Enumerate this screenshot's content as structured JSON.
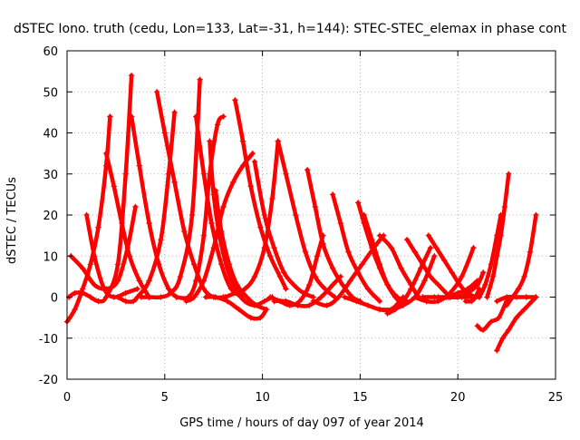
{
  "chart_data": {
    "type": "line",
    "title": "dSTEC Iono. truth (cedu, Lon=133, Lat=-31, h=144): STEC-STEC_elemax in phase cont",
    "xlabel": "GPS time / hours of day 097 of year 2014",
    "ylabel": "dSTEC  / TECUs",
    "xlim": [
      0,
      25
    ],
    "ylim": [
      -20,
      60
    ],
    "xticks": [
      0,
      5,
      10,
      15,
      20,
      25
    ],
    "yticks": [
      -20,
      -10,
      0,
      10,
      20,
      30,
      40,
      50,
      60
    ],
    "grid": true,
    "legend": "none",
    "color": "#ff0000",
    "marker": "plus",
    "series": [
      {
        "x": [
          0.0,
          0.4,
          0.8,
          1.2,
          1.6,
          2.0,
          2.2
        ],
        "y": [
          -6,
          -3,
          2,
          8,
          17,
          32,
          44
        ]
      },
      {
        "x": [
          2.0,
          2.4,
          2.8,
          3.2,
          3.7,
          4.2
        ],
        "y": [
          35,
          27,
          18,
          10,
          4,
          0
        ]
      },
      {
        "x": [
          0.1,
          0.4,
          0.8,
          1.2,
          1.6,
          2.0,
          2.6,
          3.0,
          3.3
        ],
        "y": [
          0,
          1,
          1,
          0,
          -1,
          0,
          8,
          30,
          54
        ]
      },
      {
        "x": [
          3.3,
          3.7,
          4.2,
          4.7,
          5.2,
          5.6
        ],
        "y": [
          44,
          32,
          18,
          8,
          2,
          0
        ]
      },
      {
        "x": [
          1.0,
          1.4,
          1.9,
          2.4,
          3.0,
          3.6
        ],
        "y": [
          20,
          10,
          2,
          0,
          1,
          2
        ]
      },
      {
        "x": [
          2.6,
          3.0,
          3.4,
          3.6,
          4.2,
          4.8,
          5.2,
          5.5
        ],
        "y": [
          0,
          -1,
          -1,
          0,
          4,
          14,
          30,
          45
        ]
      },
      {
        "x": [
          4.6,
          5.0,
          5.5,
          6.0,
          6.5,
          7.0,
          7.5,
          8.0
        ],
        "y": [
          50,
          40,
          28,
          16,
          8,
          2,
          0,
          0
        ]
      },
      {
        "x": [
          3.8,
          4.2,
          4.8,
          5.3,
          5.8,
          6.4,
          6.8
        ],
        "y": [
          0,
          0,
          0,
          1,
          5,
          20,
          53
        ]
      },
      {
        "x": [
          6.6,
          7.0,
          7.4,
          7.9,
          8.4,
          9.0
        ],
        "y": [
          44,
          30,
          18,
          8,
          2,
          0
        ]
      },
      {
        "x": [
          6.1,
          6.5,
          7.0,
          7.5,
          8.0,
          8.5,
          9.0,
          9.5
        ],
        "y": [
          -1,
          0,
          4,
          12,
          22,
          28,
          32,
          35
        ]
      },
      {
        "x": [
          0.2,
          0.8,
          1.4,
          2.0,
          2.6,
          3.1,
          3.5
        ],
        "y": [
          10,
          7,
          3,
          2,
          4,
          12,
          22
        ]
      },
      {
        "x": [
          5.6,
          6.2,
          6.6,
          7.0,
          7.3,
          7.7,
          8.0
        ],
        "y": [
          0,
          0,
          4,
          15,
          30,
          42,
          44
        ]
      },
      {
        "x": [
          7.3,
          7.5,
          7.8,
          8.2,
          8.6,
          9.1,
          9.6,
          10.1,
          10.5
        ],
        "y": [
          38,
          25,
          15,
          7,
          2,
          -1,
          -2,
          -1,
          0
        ]
      },
      {
        "x": [
          7.6,
          7.9,
          8.3,
          8.7,
          9.2,
          9.7,
          10.2
        ],
        "y": [
          26,
          16,
          8,
          3,
          0,
          -2,
          -3
        ]
      },
      {
        "x": [
          8.6,
          9.0,
          9.4,
          9.9,
          10.4,
          10.9,
          11.2
        ],
        "y": [
          48,
          38,
          27,
          17,
          10,
          5,
          2
        ]
      },
      {
        "x": [
          7.1,
          7.6,
          8.2,
          8.8,
          9.4,
          9.9,
          10.2
        ],
        "y": [
          0,
          0,
          -1,
          -3,
          -5,
          -5,
          -3
        ]
      },
      {
        "x": [
          8.1,
          8.6,
          9.1,
          9.6,
          10.1,
          10.5,
          10.8
        ],
        "y": [
          0,
          1,
          2,
          5,
          12,
          24,
          38
        ]
      },
      {
        "x": [
          9.6,
          10.1,
          10.6,
          11.1,
          11.6,
          12.1,
          12.6
        ],
        "y": [
          33,
          20,
          12,
          6,
          3,
          1,
          0
        ]
      },
      {
        "x": [
          10.8,
          11.2,
          11.7,
          12.2,
          12.7,
          13.2,
          13.7
        ],
        "y": [
          38,
          30,
          20,
          11,
          5,
          2,
          0
        ]
      },
      {
        "x": [
          10.4,
          10.9,
          11.4,
          11.9,
          12.4,
          12.8,
          13.1
        ],
        "y": [
          0,
          -1,
          -2,
          -1,
          3,
          10,
          15
        ]
      },
      {
        "x": [
          12.3,
          12.7,
          13.1,
          13.6,
          14.1,
          14.6,
          15.0
        ],
        "y": [
          31,
          22,
          13,
          7,
          3,
          0,
          -1
        ]
      },
      {
        "x": [
          10.6,
          11.2,
          11.8,
          12.4,
          13.0,
          13.6,
          14.0
        ],
        "y": [
          -1,
          -1,
          -2,
          -2,
          0,
          3,
          5
        ]
      },
      {
        "x": [
          13.6,
          14.0,
          14.4,
          14.9,
          15.4,
          16.0
        ],
        "y": [
          25,
          18,
          11,
          6,
          2,
          -1
        ]
      },
      {
        "x": [
          12.6,
          13.3,
          13.9,
          14.5,
          15.1,
          15.7,
          16.2
        ],
        "y": [
          -1,
          -2,
          0,
          4,
          8,
          12,
          15
        ]
      },
      {
        "x": [
          14.9,
          15.2,
          15.6,
          16.0,
          16.4,
          16.9,
          17.4
        ],
        "y": [
          23,
          18,
          12,
          7,
          3,
          0,
          -1
        ]
      },
      {
        "x": [
          15.2,
          15.6,
          16.0,
          16.4,
          16.8,
          17.2
        ],
        "y": [
          20,
          14,
          8,
          3,
          0,
          -2
        ]
      },
      {
        "x": [
          14.2,
          14.8,
          15.4,
          16.0,
          16.6,
          17.2
        ],
        "y": [
          0,
          -1,
          -2,
          -3,
          -3,
          0
        ]
      },
      {
        "x": [
          16.0,
          16.6,
          17.1,
          17.6,
          18.0,
          18.4
        ],
        "y": [
          15,
          12,
          7,
          3,
          0,
          -1
        ]
      },
      {
        "x": [
          16.4,
          16.8,
          17.2,
          17.6,
          18.1,
          18.6
        ],
        "y": [
          -4,
          -3,
          -1,
          2,
          7,
          12
        ]
      },
      {
        "x": [
          17.4,
          17.8,
          18.2,
          18.6,
          19.0,
          19.4
        ],
        "y": [
          14,
          11,
          8,
          5,
          3,
          1
        ]
      },
      {
        "x": [
          16.0,
          16.6,
          17.2,
          17.8,
          18.3,
          18.8
        ],
        "y": [
          -3,
          -3,
          -2,
          0,
          4,
          10
        ]
      },
      {
        "x": [
          18.5,
          18.9,
          19.3,
          19.7,
          20.1,
          20.5,
          20.9
        ],
        "y": [
          15,
          12,
          9,
          6,
          3,
          1,
          0
        ]
      },
      {
        "x": [
          17.8,
          18.4,
          19.0,
          19.6,
          20.2,
          20.8
        ],
        "y": [
          0,
          -1,
          -1,
          1,
          5,
          12
        ]
      },
      {
        "x": [
          18.2,
          18.8,
          19.4,
          20.0,
          20.5,
          21.0
        ],
        "y": [
          0,
          0,
          0,
          1,
          2,
          4
        ]
      },
      {
        "x": [
          19.0,
          19.6,
          20.2,
          20.7,
          21.1
        ],
        "y": [
          0,
          0,
          0,
          0,
          0
        ]
      },
      {
        "x": [
          19.5,
          20.0,
          20.5,
          21.0,
          21.3
        ],
        "y": [
          0,
          0,
          1,
          3,
          6
        ]
      },
      {
        "x": [
          20.4,
          20.7,
          20.9,
          21.1
        ],
        "y": [
          -1,
          -1,
          0,
          2
        ]
      },
      {
        "x": [
          21.0,
          21.3,
          21.7,
          22.1,
          22.5,
          22.8
        ],
        "y": [
          -7,
          -8,
          -6,
          -5,
          -1,
          0
        ]
      },
      {
        "x": [
          21.5,
          21.8,
          22.0,
          22.2,
          22.4,
          22.6
        ],
        "y": [
          0,
          5,
          10,
          15,
          22,
          30
        ]
      },
      {
        "x": [
          21.1,
          21.4,
          21.7,
          22.0,
          22.2
        ],
        "y": [
          0,
          3,
          8,
          15,
          20
        ]
      },
      {
        "x": [
          22.0,
          22.3,
          22.6,
          23.0,
          23.4,
          23.8,
          24.0
        ],
        "y": [
          -13,
          -10,
          -8,
          -5,
          -3,
          -1,
          0
        ]
      },
      {
        "x": [
          22.5,
          22.8,
          23.1,
          23.4,
          23.7,
          24.0
        ],
        "y": [
          -2,
          0,
          2,
          5,
          11,
          20
        ]
      },
      {
        "x": [
          22.0,
          22.5,
          23.0,
          23.5,
          24.0
        ],
        "y": [
          -1,
          0,
          0,
          0,
          0
        ]
      }
    ]
  }
}
